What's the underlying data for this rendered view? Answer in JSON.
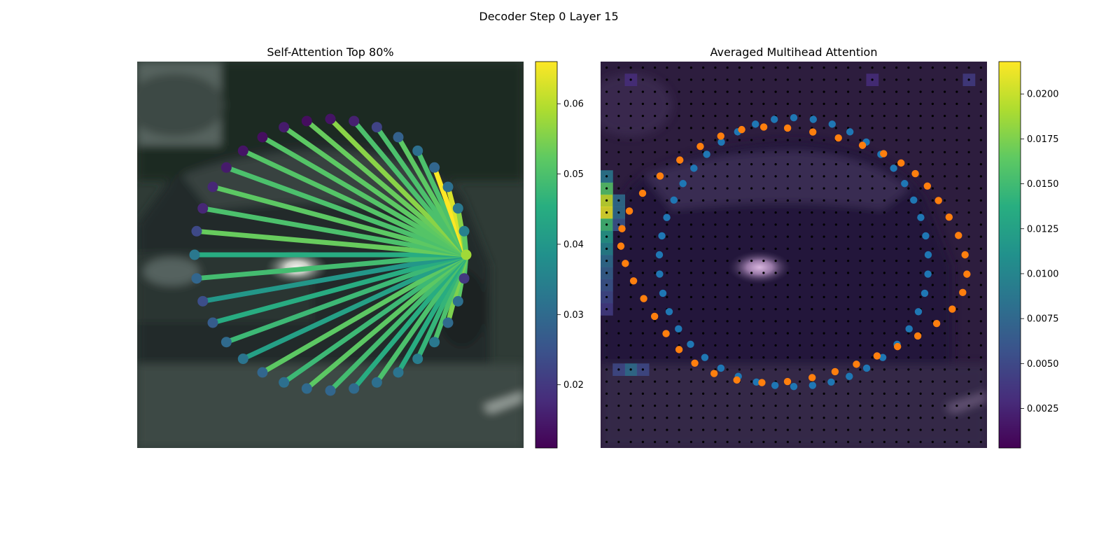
{
  "figure": {
    "title": "Decoder Step 0 Layer 15"
  },
  "chart_data": [
    {
      "type": "network",
      "title": "Self-Attention Top 80%",
      "background": "blurred street photo of a dark car",
      "colormap": "viridis",
      "colorbar": {
        "range": [
          0.011,
          0.066
        ],
        "ticks": [
          0.02,
          0.03,
          0.04,
          0.05,
          0.06
        ],
        "tick_labels": [
          "0.02",
          "0.03",
          "0.04",
          "0.05",
          "0.06"
        ]
      },
      "query_point_index": 0,
      "points_count": 36,
      "node_values": [
        0.058,
        0.02,
        0.031,
        0.03,
        0.033,
        0.034,
        0.032,
        0.031,
        0.03,
        0.029,
        0.03,
        0.031,
        0.029,
        0.032,
        0.03,
        0.027,
        0.024,
        0.029,
        0.033,
        0.023,
        0.017,
        0.017,
        0.015,
        0.014,
        0.013,
        0.015,
        0.013,
        0.014,
        0.016,
        0.022,
        0.028,
        0.031,
        0.029,
        0.031,
        0.033,
        0.035
      ],
      "edge_values": [
        0,
        0.05,
        0.052,
        0.055,
        0.05,
        0.047,
        0.045,
        0.05,
        0.045,
        0.049,
        0.052,
        0.048,
        0.052,
        0.042,
        0.048,
        0.045,
        0.04,
        0.049,
        0.045,
        0.053,
        0.05,
        0.052,
        0.05,
        0.051,
        0.051,
        0.052,
        0.053,
        0.056,
        0.05,
        0.05,
        0.052,
        0.05,
        0.066,
        0.063,
        0.056,
        0.052
      ]
    },
    {
      "type": "heatmap_scatter",
      "title": "Averaged Multihead Attention",
      "background": "blurred street photo of a dark car with attention heatmap overlay",
      "colormap": "viridis",
      "grid_size": 32,
      "colorbar": {
        "range": [
          0.0003,
          0.0218
        ],
        "ticks": [
          0.0025,
          0.005,
          0.0075,
          0.01,
          0.0125,
          0.015,
          0.0175,
          0.02
        ],
        "tick_labels": [
          "0.0025",
          "0.0050",
          "0.0075",
          "0.0100",
          "0.0125",
          "0.0150",
          "0.0175",
          "0.0200"
        ]
      },
      "heat_cells": [
        {
          "col": 0,
          "row": 11,
          "value": 0.02
        },
        {
          "col": 0,
          "row": 12,
          "value": 0.021
        },
        {
          "col": 0,
          "row": 10,
          "value": 0.016
        },
        {
          "col": 0,
          "row": 13,
          "value": 0.015
        },
        {
          "col": 0,
          "row": 14,
          "value": 0.012
        },
        {
          "col": 0,
          "row": 15,
          "value": 0.01
        },
        {
          "col": 0,
          "row": 16,
          "value": 0.008
        },
        {
          "col": 0,
          "row": 17,
          "value": 0.007
        },
        {
          "col": 0,
          "row": 18,
          "value": 0.006
        },
        {
          "col": 0,
          "row": 9,
          "value": 0.009
        },
        {
          "col": 0,
          "row": 19,
          "value": 0.005
        },
        {
          "col": 0,
          "row": 20,
          "value": 0.004
        },
        {
          "col": 1,
          "row": 11,
          "value": 0.008
        },
        {
          "col": 1,
          "row": 12,
          "value": 0.008
        },
        {
          "col": 1,
          "row": 13,
          "value": 0.006
        },
        {
          "col": 2,
          "row": 25,
          "value": 0.008
        },
        {
          "col": 1,
          "row": 25,
          "value": 0.005
        },
        {
          "col": 3,
          "row": 25,
          "value": 0.005
        },
        {
          "col": 22,
          "row": 1,
          "value": 0.003
        },
        {
          "col": 30,
          "row": 1,
          "value": 0.004
        },
        {
          "col": 2,
          "row": 1,
          "value": 0.003
        }
      ],
      "series": [
        {
          "name": "",
          "color": "#1f77b4",
          "points_count": 44
        },
        {
          "name": "",
          "color": "#ff7f0e",
          "points_count": 43
        }
      ]
    }
  ]
}
